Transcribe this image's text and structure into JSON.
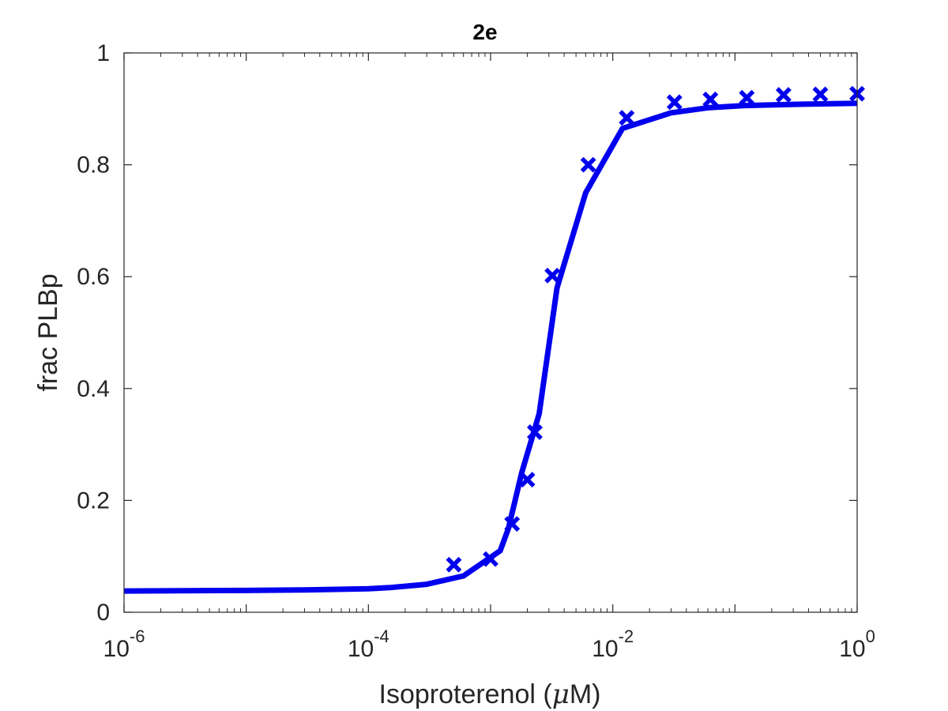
{
  "chart_data": {
    "type": "line",
    "title": "2e",
    "xlabel_prefix": "Isoproterenol (",
    "xlabel_mu": "μ",
    "xlabel_suffix": "M)",
    "ylabel": "frac PLBp",
    "x_scale": "log",
    "xlim": [
      1e-06,
      1
    ],
    "ylim": [
      0,
      1
    ],
    "grid": false,
    "x_ticks": [
      {
        "base": "10",
        "exp": "-6",
        "value": 1e-06
      },
      {
        "base": "10",
        "exp": "-4",
        "value": 0.0001
      },
      {
        "base": "10",
        "exp": "-2",
        "value": 0.01
      },
      {
        "base": "10",
        "exp": "0",
        "value": 1
      }
    ],
    "y_ticks": [
      {
        "label": "0",
        "value": 0
      },
      {
        "label": "0.2",
        "value": 0.2
      },
      {
        "label": "0.4",
        "value": 0.4
      },
      {
        "label": "0.6",
        "value": 0.6
      },
      {
        "label": "0.8",
        "value": 0.8
      },
      {
        "label": "1",
        "value": 1
      }
    ],
    "color": "#0000ee",
    "series": [
      {
        "kind": "line",
        "x": [
          1e-06,
          1e-05,
          3e-05,
          0.0001,
          0.00015,
          0.0003,
          0.0006,
          0.0012,
          0.0014,
          0.0018,
          0.0025,
          0.0035,
          0.006,
          0.012,
          0.03,
          0.06,
          0.12,
          0.3,
          1
        ],
        "y": [
          0.038,
          0.039,
          0.04,
          0.042,
          0.044,
          0.05,
          0.065,
          0.11,
          0.15,
          0.25,
          0.355,
          0.58,
          0.75,
          0.865,
          0.893,
          0.902,
          0.906,
          0.908,
          0.91
        ]
      },
      {
        "kind": "marker",
        "x": [
          0.0005,
          0.001,
          0.0015,
          0.002,
          0.0023,
          0.0032,
          0.0063,
          0.013,
          0.032,
          0.063,
          0.125,
          0.25,
          0.5,
          1.0
        ],
        "y": [
          0.085,
          0.095,
          0.158,
          0.237,
          0.322,
          0.602,
          0.8,
          0.884,
          0.912,
          0.917,
          0.92,
          0.925,
          0.926,
          0.927
        ]
      }
    ]
  }
}
